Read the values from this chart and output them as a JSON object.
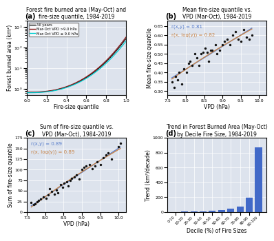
{
  "title_a": "Forest fire burned area (May-Oct) and\nfire-size quantile, 1984-2019",
  "title_b": "Mean fire-size quantile vs.\nVPD (Mar-Oct), 1984-2019",
  "title_c": "Sum of fire-size quantile vs.\nVPD (Mar-Oct), 1984-2019",
  "title_d": "Trend in Forest Burned Area (May-Oct)\nby Decile Fire Size, 1984-2019",
  "panel_labels": [
    "(a)",
    "(b)",
    "(c)",
    "(d)"
  ],
  "bg_color": "#dde3ed",
  "line_all_color": "#111111",
  "line_high_color": "#8b1a1a",
  "line_low_color": "#00ced1",
  "scatter_color": "#111111",
  "line_blue": "#5a7fcc",
  "line_orange": "#c8854a",
  "bar_color": "#4169c8",
  "vpd_b_x": [
    7.62,
    7.68,
    7.72,
    7.78,
    7.82,
    7.88,
    7.95,
    8.02,
    8.08,
    8.12,
    8.18,
    8.25,
    8.3,
    8.35,
    8.42,
    8.48,
    8.52,
    8.58,
    8.62,
    8.68,
    8.72,
    8.8,
    8.85,
    8.92,
    9.0,
    9.05,
    9.12,
    9.2,
    9.28,
    9.35,
    9.42,
    9.5,
    9.58,
    9.65,
    9.72,
    9.8
  ],
  "mean_b_y": [
    0.35,
    0.32,
    0.38,
    0.36,
    0.4,
    0.34,
    0.42,
    0.4,
    0.45,
    0.46,
    0.44,
    0.5,
    0.48,
    0.44,
    0.5,
    0.51,
    0.53,
    0.51,
    0.46,
    0.52,
    0.52,
    0.55,
    0.5,
    0.52,
    0.55,
    0.57,
    0.58,
    0.55,
    0.6,
    0.62,
    0.58,
    0.57,
    0.63,
    0.59,
    0.58,
    0.6
  ],
  "r_xy_b": "r(x,y) = 0.81",
  "r_xlogy_b": "r(x, log(y)) = 0.82",
  "vpd_c_x": [
    7.62,
    7.68,
    7.72,
    7.78,
    7.82,
    7.88,
    7.95,
    8.02,
    8.08,
    8.12,
    8.18,
    8.25,
    8.3,
    8.35,
    8.42,
    8.48,
    8.52,
    8.58,
    8.62,
    8.68,
    8.72,
    8.8,
    8.85,
    8.92,
    9.0,
    9.05,
    9.12,
    9.2,
    9.28,
    9.35,
    9.42,
    9.5,
    9.58,
    9.65,
    9.72,
    9.8,
    10.0,
    10.05
  ],
  "sum_c_y": [
    22,
    18,
    20,
    25,
    28,
    30,
    35,
    32,
    40,
    55,
    48,
    42,
    52,
    45,
    65,
    58,
    68,
    72,
    62,
    75,
    80,
    82,
    88,
    78,
    100,
    105,
    108,
    112,
    102,
    108,
    118,
    112,
    128,
    135,
    140,
    125,
    155,
    162
  ],
  "r_xy_c": "r(x,y) = 0.89",
  "r_xlogy_c": "r(x, log(y)) = 0.89",
  "decile_labels": [
    "0-10",
    "10-20",
    "20-30",
    "30-40",
    "40-50",
    "50-60",
    "60-70",
    "70-80",
    "80-90",
    "90-100"
  ],
  "decile_trends": [
    2,
    5,
    8,
    12,
    18,
    28,
    45,
    70,
    195,
    870
  ],
  "ylabel_a": "Forest burned area (km²)",
  "xlabel_a": "Fire-size quantile",
  "ylabel_b": "Mean fire-size quantile",
  "xlabel_b": "VPD (hPa)",
  "ylabel_c": "Sum of fire-size quantile",
  "xlabel_c": "VPD (hPa)",
  "ylabel_d": "Trend (km²/decade)",
  "xlabel_d": "Decile (%) of Fire Sizes",
  "legend_all": "All years",
  "legend_high": "Mar-Oct VPD >9.0 hPa",
  "legend_low": "Mar-Oct VPD ≤ 9.0 hPa",
  "ylim_b": [
    0.28,
    0.68
  ],
  "ylim_c": [
    0,
    175
  ],
  "ylim_d": [
    0,
    1000
  ],
  "xlim_bc": [
    7.5,
    10.2
  ]
}
